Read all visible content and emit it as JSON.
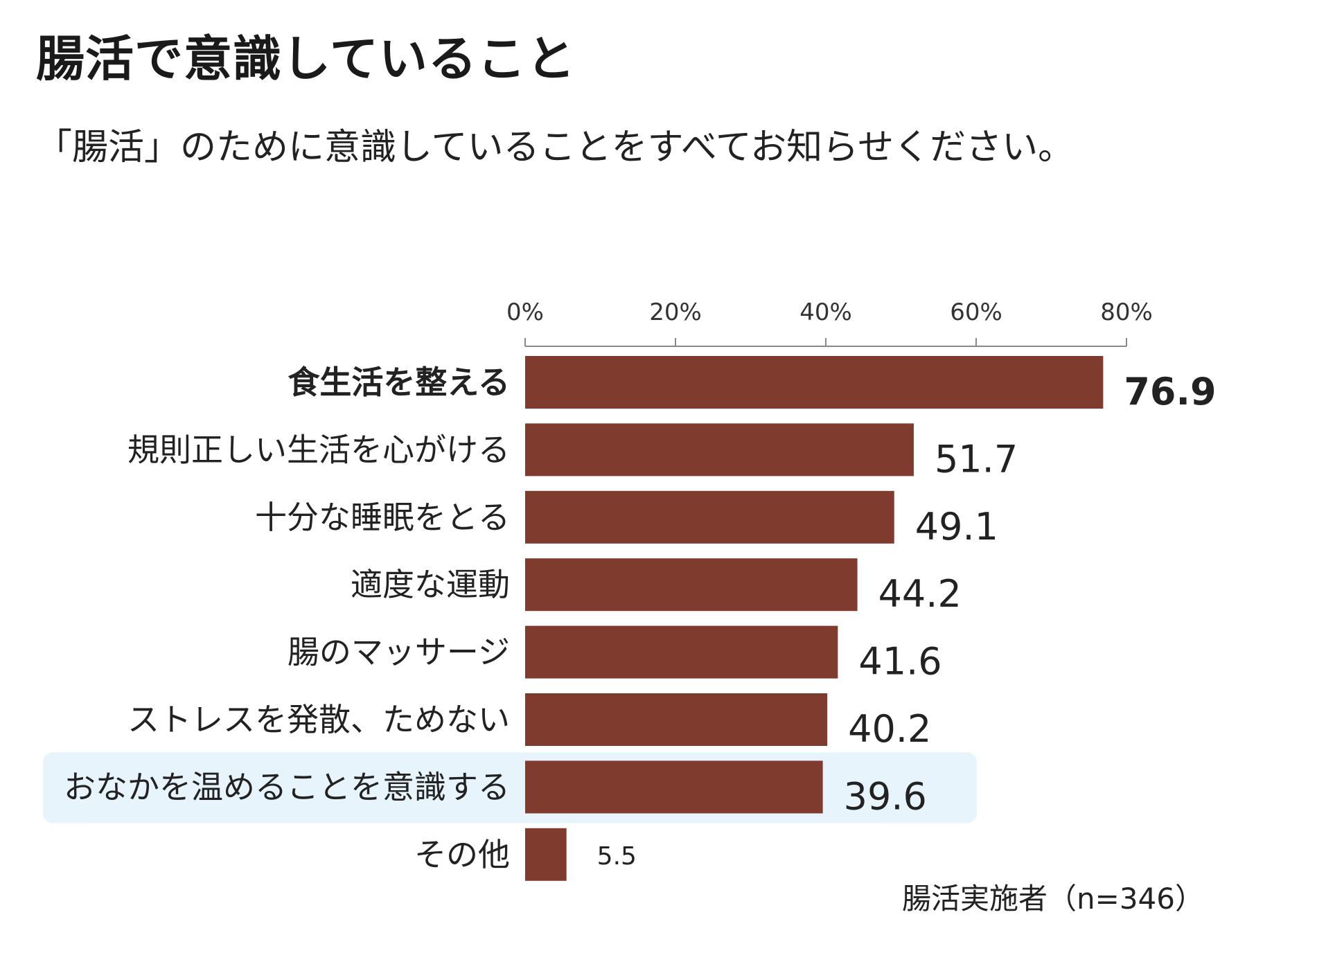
{
  "title": "腸活で意識していること",
  "subtitle": "「腸活」のために意識していることをすべてお知らせください。",
  "note": "腸活実施者（n=346）",
  "colors": {
    "bar": "#7f3b2e",
    "highlight": "#e8f4fb",
    "axis": "#888888"
  },
  "chart_data": {
    "type": "bar",
    "orientation": "horizontal",
    "xlim": [
      0,
      80
    ],
    "ticks": [
      "0%",
      "20%",
      "40%",
      "60%",
      "80%"
    ],
    "tick_values": [
      0,
      20,
      40,
      60,
      80
    ],
    "categories": [
      "食生活を整える",
      "規則正しい生活を心がける",
      "十分な睡眠をとる",
      "適度な運動",
      "腸のマッサージ",
      "ストレスを発散、ためない",
      "おなかを温めることを意識する",
      "その他"
    ],
    "values": [
      76.9,
      51.7,
      49.1,
      44.2,
      41.6,
      40.2,
      39.6,
      5.5
    ],
    "value_labels": [
      "76.9",
      "51.7",
      "49.1",
      "44.2",
      "41.6",
      "40.2",
      "39.6",
      "5.5"
    ],
    "bold_index": 0,
    "highlight_index": 6,
    "small_label_index": 7
  }
}
